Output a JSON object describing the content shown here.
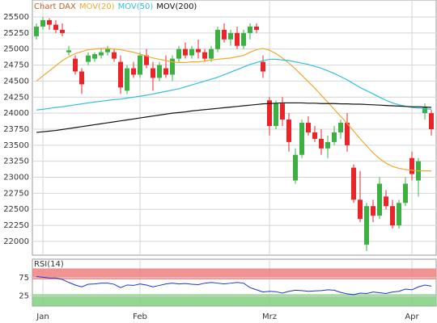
{
  "chart_data": [
    {
      "type": "candlestick",
      "title": "Chart DAX",
      "categories": [
        null,
        "Jan",
        null,
        null,
        null,
        null,
        null,
        null,
        null,
        null,
        null,
        null,
        null,
        null,
        null,
        null,
        "Feb",
        null,
        null,
        null,
        null,
        null,
        null,
        null,
        null,
        null,
        null,
        null,
        null,
        null,
        null,
        null,
        null,
        null,
        null,
        null,
        "Mrz",
        null,
        null,
        null,
        null,
        null,
        null,
        null,
        null,
        null,
        null,
        null,
        null,
        null,
        null,
        null,
        null,
        null,
        null,
        null,
        null,
        null,
        "Apr",
        null,
        null,
        null
      ],
      "open": [
        25200,
        25350,
        25450,
        25380,
        25300,
        24950,
        24850,
        24650,
        24800,
        24850,
        24900,
        24950,
        24950,
        24800,
        24350,
        24700,
        24600,
        24900,
        24700,
        24550,
        24700,
        24600,
        24850,
        25000,
        24900,
        25000,
        24950,
        24850,
        25000,
        25300,
        25150,
        25250,
        25050,
        25250,
        25350,
        24800,
        24200,
        23800,
        24150,
        23900,
        22950,
        23350,
        23850,
        23700,
        23600,
        23450,
        23550,
        23700,
        23850,
        23150,
        22650,
        21950,
        22550,
        22400,
        22700,
        22550,
        22250,
        22600,
        23300,
        22950,
        24000,
        24000
      ],
      "high": [
        25400,
        25500,
        25480,
        25450,
        25400,
        25050,
        24900,
        24700,
        24950,
        24950,
        25000,
        25050,
        25000,
        24900,
        24750,
        24800,
        24950,
        25000,
        24800,
        24800,
        24900,
        24900,
        25050,
        25100,
        25050,
        25150,
        25000,
        25050,
        25350,
        25400,
        25300,
        25350,
        25300,
        25400,
        25400,
        24900,
        24250,
        24200,
        24250,
        24000,
        23450,
        23900,
        23950,
        23800,
        23750,
        23650,
        23800,
        23900,
        24000,
        23200,
        23100,
        22600,
        22650,
        23000,
        22800,
        22650,
        22650,
        23000,
        23400,
        23300,
        24150,
        24050
      ],
      "low": [
        25150,
        25300,
        25300,
        25250,
        25200,
        24900,
        24600,
        24300,
        24750,
        24800,
        24850,
        24900,
        24800,
        24300,
        24300,
        24550,
        24550,
        24700,
        24350,
        24500,
        24550,
        24500,
        24800,
        24850,
        24850,
        24850,
        24800,
        24800,
        24950,
        25100,
        25050,
        25000,
        25000,
        25150,
        25250,
        24550,
        23650,
        23750,
        23800,
        23400,
        22900,
        23300,
        23650,
        23550,
        23350,
        23300,
        23500,
        23600,
        23400,
        22600,
        22300,
        21850,
        22300,
        22350,
        22500,
        22200,
        22200,
        22550,
        22950,
        22700,
        23900,
        23650
      ],
      "close": [
        25350,
        25450,
        25380,
        25300,
        25250,
        24980,
        24650,
        24450,
        24900,
        24920,
        24950,
        25000,
        24850,
        24400,
        24700,
        24600,
        24900,
        24750,
        24550,
        24750,
        24600,
        24850,
        25000,
        24900,
        25000,
        24950,
        24850,
        25000,
        25300,
        25150,
        25250,
        25050,
        25250,
        25350,
        25300,
        24650,
        23800,
        24150,
        23900,
        23550,
        23350,
        23850,
        23700,
        23600,
        23450,
        23550,
        23700,
        23850,
        23500,
        22650,
        22350,
        22550,
        22400,
        22900,
        22550,
        22250,
        22600,
        22900,
        23050,
        23250,
        24100,
        23750
      ],
      "up_color": "#3cb043",
      "down_color": "#e8262a",
      "series": [
        {
          "name": "MOV(20)",
          "color": "#f0a830",
          "values": [
            24500,
            24580,
            24660,
            24740,
            24820,
            24880,
            24930,
            24960,
            24990,
            25000,
            25010,
            25010,
            25000,
            24990,
            24970,
            24950,
            24920,
            24890,
            24860,
            24840,
            24820,
            24800,
            24790,
            24790,
            24800,
            24800,
            24810,
            24830,
            24840,
            24850,
            24860,
            24880,
            24900,
            24950,
            24990,
            25010,
            24980,
            24930,
            24860,
            24780,
            24690,
            24590,
            24490,
            24390,
            24280,
            24170,
            24060,
            23950,
            23840,
            23720,
            23600,
            23490,
            23380,
            23290,
            23220,
            23170,
            23140,
            23120,
            23110,
            23100,
            23100,
            23100
          ]
        },
        {
          "name": "MOV(50)",
          "color": "#30c0e0",
          "values": [
            24050,
            24060,
            24075,
            24090,
            24100,
            24115,
            24130,
            24145,
            24160,
            24175,
            24185,
            24200,
            24210,
            24220,
            24235,
            24250,
            24265,
            24280,
            24300,
            24320,
            24340,
            24360,
            24380,
            24410,
            24440,
            24470,
            24500,
            24530,
            24560,
            24600,
            24640,
            24680,
            24720,
            24760,
            24790,
            24820,
            24840,
            24840,
            24830,
            24820,
            24800,
            24780,
            24760,
            24730,
            24700,
            24660,
            24620,
            24570,
            24520,
            24460,
            24400,
            24350,
            24300,
            24250,
            24200,
            24160,
            24130,
            24110,
            24090,
            24080,
            24070,
            24060
          ]
        },
        {
          "name": "MOV(200)",
          "color": "#111111",
          "values": [
            23700,
            23710,
            23720,
            23730,
            23745,
            23760,
            23775,
            23790,
            23805,
            23820,
            23835,
            23850,
            23865,
            23880,
            23895,
            23910,
            23925,
            23940,
            23955,
            23970,
            23985,
            24000,
            24010,
            24020,
            24035,
            24045,
            24055,
            24065,
            24075,
            24085,
            24095,
            24105,
            24115,
            24125,
            24135,
            24145,
            24150,
            24155,
            24160,
            24160,
            24160,
            24160,
            24155,
            24155,
            24150,
            24150,
            24150,
            24145,
            24145,
            24140,
            24140,
            24135,
            24130,
            24125,
            24120,
            24115,
            24110,
            24105,
            24100,
            24100,
            24095,
            24090
          ]
        }
      ],
      "ylim": [
        21785,
        25765
      ],
      "yticks": [
        22000,
        22250,
        22500,
        22750,
        23000,
        23250,
        23500,
        23750,
        24000,
        24250,
        24500,
        24750,
        25000,
        25250,
        25500
      ],
      "grid": true
    },
    {
      "type": "line",
      "title": "RSI(14)",
      "color": "#2233cc",
      "values": [
        78,
        76,
        74,
        74,
        70,
        62,
        55,
        50,
        57,
        58,
        60,
        60,
        57,
        48,
        55,
        54,
        58,
        55,
        50,
        54,
        58,
        60,
        58,
        59,
        57,
        56,
        60,
        62,
        60,
        58,
        60,
        62,
        60,
        48,
        42,
        36,
        38,
        37,
        33,
        38,
        41,
        40,
        38,
        39,
        40,
        42,
        41,
        35,
        31,
        29,
        33,
        32,
        36,
        34,
        32,
        36,
        38,
        44,
        42,
        50,
        55,
        52
      ],
      "bands": [
        {
          "from": 70,
          "to": 100,
          "color": "#f08080"
        },
        {
          "from": -2,
          "to": 30,
          "color": "#80d080"
        }
      ],
      "ylim": [
        -2,
        125
      ],
      "yticks": [
        25,
        75
      ],
      "grid": true
    }
  ]
}
